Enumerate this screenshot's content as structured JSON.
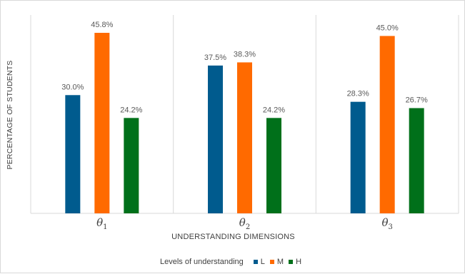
{
  "chart_data": {
    "type": "bar",
    "title": "",
    "xlabel": "UNDERSTANDING DIMENSIONS",
    "ylabel": "PERCENTAGE OF STUDENTS",
    "categories": [
      {
        "base": "θ",
        "sub": "1"
      },
      {
        "base": "θ",
        "sub": "2"
      },
      {
        "base": "θ",
        "sub": "3"
      }
    ],
    "series": [
      {
        "name": "L",
        "color": "#005b8e",
        "values": [
          30.0,
          37.5,
          28.3
        ],
        "labels": [
          "30.0%",
          "37.5%",
          "28.3%"
        ]
      },
      {
        "name": "M",
        "color": "#ff6a00",
        "values": [
          45.8,
          38.3,
          45.0
        ],
        "labels": [
          "45.8%",
          "38.3%",
          "45.0%"
        ]
      },
      {
        "name": "H",
        "color": "#00701a",
        "values": [
          24.2,
          24.2,
          26.7
        ],
        "labels": [
          "24.2%",
          "24.2%",
          "26.7%"
        ]
      }
    ],
    "ylim": [
      0,
      50
    ],
    "grid": "vertical separators between categories",
    "legend": {
      "title": "Levels of understanding",
      "position": "bottom"
    }
  }
}
